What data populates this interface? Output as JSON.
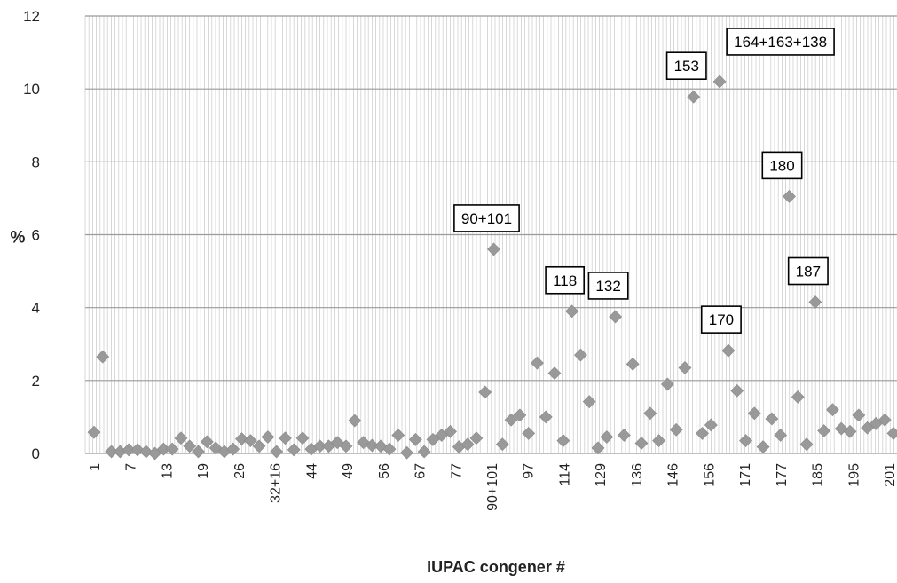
{
  "chart_data": {
    "type": "scatter",
    "title": "",
    "xlabel": "IUPAC congener #",
    "ylabel": "%",
    "ylim": [
      0,
      12
    ],
    "yticks": [
      "0",
      "2",
      "4",
      "6",
      "8",
      "10",
      "12"
    ],
    "grid": true,
    "legend": "none",
    "marker_color": "#999999",
    "x_tick_labels": [
      "1",
      "7",
      "13",
      "19",
      "26",
      "32+16",
      "44",
      "49",
      "56",
      "67",
      "77",
      "90+101",
      "97",
      "114",
      "129",
      "136",
      "146",
      "156",
      "171",
      "177",
      "185",
      "195",
      "201"
    ],
    "series": [
      {
        "values": [
          0.58,
          2.65,
          0.05,
          0.05,
          0.1,
          0.1,
          0.05,
          0.0,
          0.12,
          0.12,
          0.42,
          0.2,
          0.05,
          0.32,
          0.15,
          0.05,
          0.12,
          0.4,
          0.35,
          0.2,
          0.45,
          0.05,
          0.42,
          0.1,
          0.42,
          0.12,
          0.2,
          0.2,
          0.3,
          0.2,
          0.9,
          0.3,
          0.22,
          0.2,
          0.12,
          0.5,
          0.02,
          0.38,
          0.05,
          0.38,
          0.5,
          0.6,
          0.18,
          0.25,
          0.42,
          1.68,
          5.6,
          0.25,
          0.92,
          1.05,
          0.55,
          2.48,
          1.0,
          2.2,
          0.35,
          3.9,
          2.7,
          1.42,
          0.15,
          0.45,
          3.75,
          0.5,
          2.45,
          0.28,
          1.1,
          0.35,
          1.9,
          0.65,
          2.35,
          9.78,
          0.55,
          0.78,
          10.2,
          2.82,
          1.72,
          0.35,
          1.1,
          0.18,
          0.95,
          0.5,
          7.05,
          1.55,
          0.25,
          4.15,
          0.62,
          1.2,
          0.68,
          0.6,
          1.05,
          0.7,
          0.82,
          0.92,
          0.55
        ]
      }
    ],
    "annotations": [
      {
        "text": "90+101",
        "point_index": 46
      },
      {
        "text": "118",
        "point_index": 55
      },
      {
        "text": "132",
        "point_index": 60
      },
      {
        "text": "153",
        "point_index": 69
      },
      {
        "text": "164+163+138",
        "point_index": 72
      },
      {
        "text": "170",
        "point_index": 73
      },
      {
        "text": "180",
        "point_index": 80
      },
      {
        "text": "187",
        "point_index": 83
      }
    ]
  }
}
